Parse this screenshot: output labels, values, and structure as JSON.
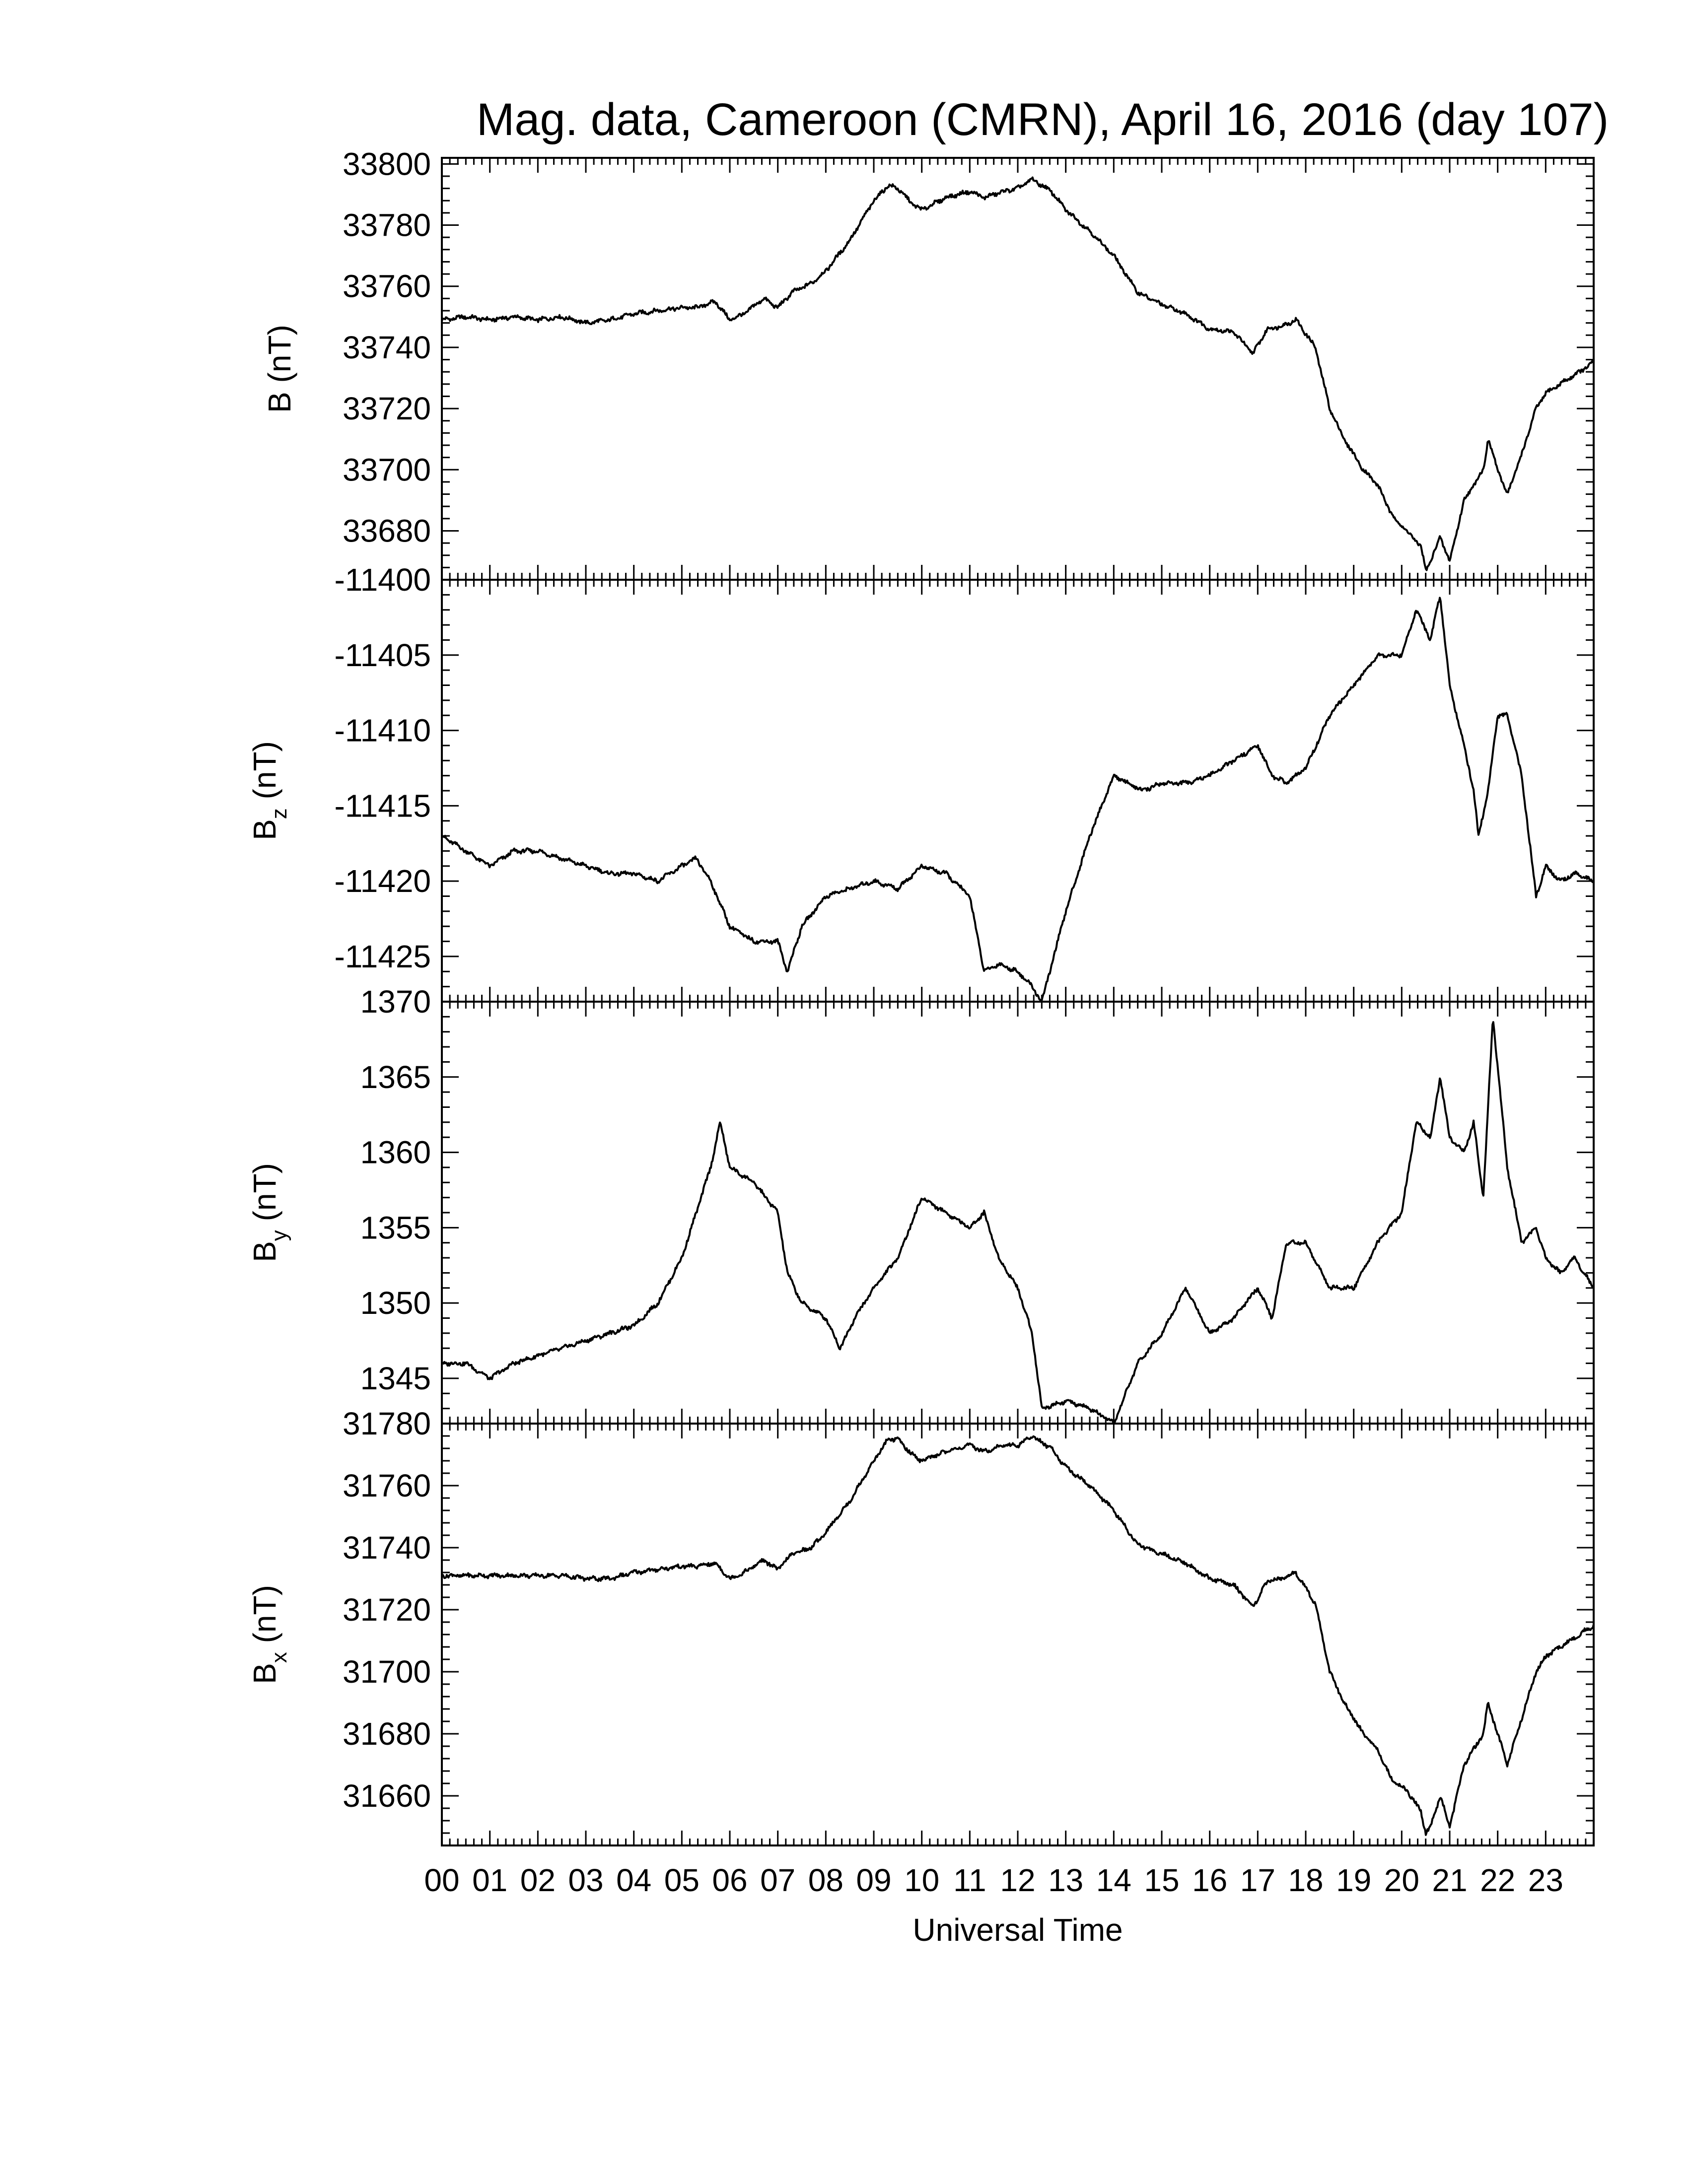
{
  "chart_data": {
    "title": "Mag. data, Cameroon (CMRN), April 16, 2016 (day 107)",
    "xlabel": "Universal Time",
    "x_tick_labels": [
      "00",
      "01",
      "02",
      "03",
      "04",
      "05",
      "06",
      "07",
      "08",
      "09",
      "10",
      "11",
      "12",
      "13",
      "14",
      "15",
      "16",
      "17",
      "18",
      "19",
      "20",
      "21",
      "22",
      "23"
    ],
    "xlim": [
      0,
      24
    ],
    "line_color": "#000000",
    "panels": [
      {
        "type": "line",
        "ylabel": "B (nT)",
        "ylabel_base": "B",
        "ylabel_sub": "",
        "ylim": [
          33664,
          33802
        ],
        "yticks": [
          33680,
          33700,
          33720,
          33740,
          33760,
          33780,
          33800
        ],
        "x": [
          0,
          0.5,
          1,
          1.5,
          2,
          2.5,
          3,
          3.5,
          4,
          4.5,
          5,
          5.3,
          5.7,
          6,
          6.3,
          6.7,
          7,
          7.3,
          7.7,
          8,
          8.5,
          9,
          9.3,
          9.5,
          9.8,
          10,
          10.5,
          11,
          11.3,
          11.7,
          12,
          12.3,
          12.7,
          13,
          13.5,
          14,
          14.5,
          15,
          15.5,
          16,
          16.5,
          16.9,
          17.2,
          17.5,
          17.8,
          18.2,
          18.5,
          18.8,
          19.2,
          19.5,
          19.8,
          20.1,
          20.4,
          20.5,
          20.6,
          20.8,
          21,
          21.3,
          21.5,
          21.7,
          21.8,
          22,
          22.2,
          22.5,
          22.8,
          23,
          23.5,
          24
        ],
        "y": [
          33749,
          33750,
          33749,
          33750,
          33749,
          33750,
          33748,
          33749,
          33751,
          33752,
          33753,
          33753,
          33755,
          33749,
          33751,
          33756,
          33753,
          33758,
          33761,
          33765,
          33775,
          33788,
          33793,
          33792,
          33787,
          33785,
          33789,
          33791,
          33789,
          33791,
          33792,
          33795,
          33791,
          33785,
          33778,
          33770,
          33758,
          33754,
          33751,
          33746,
          33745,
          33738,
          33746,
          33747,
          33749,
          33740,
          33720,
          33710,
          33700,
          33695,
          33685,
          33680,
          33675,
          33667,
          33670,
          33678,
          33670,
          33690,
          33695,
          33700,
          33710,
          33700,
          33692,
          33705,
          33720,
          33725,
          33730,
          33735
        ]
      },
      {
        "type": "line",
        "ylabel": "Bz (nT)",
        "ylabel_base": "B",
        "ylabel_sub": "z",
        "ylim": [
          -11428,
          -11400
        ],
        "yticks": [
          -11425,
          -11420,
          -11415,
          -11410,
          -11405,
          -11400
        ],
        "x": [
          0,
          0.5,
          1,
          1.5,
          2,
          2.5,
          3,
          3.5,
          4,
          4.5,
          5,
          5.3,
          5.6,
          6,
          6.5,
          7,
          7.2,
          7.5,
          8,
          8.5,
          9,
          9.5,
          10,
          10.5,
          11,
          11.3,
          11.6,
          12,
          12.3,
          12.5,
          13,
          13.5,
          14,
          14.3,
          14.6,
          15,
          15.5,
          16,
          16.5,
          17,
          17.3,
          17.6,
          18,
          18.5,
          19,
          19.5,
          20,
          20.3,
          20.6,
          20.8,
          21,
          21.3,
          21.5,
          21.6,
          21.8,
          22,
          22.2,
          22.5,
          22.8,
          23,
          23.3,
          23.6,
          24
        ],
        "y": [
          -11417,
          -11418,
          -11419,
          -11418,
          -11418,
          -11418.5,
          -11419,
          -11419.5,
          -11419.5,
          -11420,
          -11419,
          -11418.5,
          -11420,
          -11423,
          -11424,
          -11424,
          -11426,
          -11423,
          -11421,
          -11420.5,
          -11420,
          -11420.5,
          -11419,
          -11419.5,
          -11421,
          -11426,
          -11425.5,
          -11426,
          -11427,
          -11428,
          -11422,
          -11417,
          -11413,
          -11413.5,
          -11414,
          -11413.5,
          -11413.5,
          -11413,
          -11412,
          -11411,
          -11413,
          -11413.5,
          -11412.5,
          -11409,
          -11407,
          -11405,
          -11405,
          -11402,
          -11404,
          -11401,
          -11407,
          -11411,
          -11414,
          -11417,
          -11414,
          -11409,
          -11409,
          -11413,
          -11421,
          -11419,
          -11420,
          -11419.5,
          -11420
        ]
      },
      {
        "type": "line",
        "ylabel": "By (nT)",
        "ylabel_base": "B",
        "ylabel_sub": "y",
        "ylim": [
          1342,
          1370
        ],
        "yticks": [
          1345,
          1350,
          1355,
          1360,
          1365,
          1370
        ],
        "x": [
          0,
          0.5,
          1,
          1.5,
          2,
          2.5,
          3,
          3.5,
          4,
          4.5,
          5,
          5.3,
          5.6,
          5.8,
          6,
          6.5,
          7,
          7.2,
          7.5,
          8,
          8.3,
          8.6,
          9,
          9.5,
          10,
          10.5,
          11,
          11.3,
          11.6,
          12,
          12.3,
          12.5,
          13,
          13.5,
          14,
          14.5,
          15,
          15.5,
          16,
          16.5,
          17,
          17.3,
          17.6,
          18,
          18.5,
          19,
          19.5,
          20,
          20.3,
          20.6,
          20.8,
          21,
          21.3,
          21.5,
          21.7,
          21.9,
          22.2,
          22.5,
          22.8,
          23,
          23.3,
          23.6,
          24
        ],
        "y": [
          1346,
          1346,
          1345,
          1346,
          1346.5,
          1347,
          1347.5,
          1348,
          1348.5,
          1350,
          1353,
          1356,
          1359,
          1362,
          1359,
          1358,
          1356,
          1352,
          1350,
          1349,
          1347,
          1349,
          1351,
          1353,
          1357,
          1356,
          1355,
          1356,
          1353,
          1351,
          1348,
          1343,
          1343.5,
          1343,
          1342,
          1346,
          1348,
          1351,
          1348,
          1349,
          1351,
          1349,
          1354,
          1354,
          1351,
          1351,
          1354,
          1356,
          1362,
          1361,
          1365,
          1361,
          1360,
          1362,
          1357,
          1369,
          1359,
          1354,
          1355,
          1353,
          1352,
          1353,
          1351
        ]
      },
      {
        "type": "line",
        "ylabel": "Bx (nT)",
        "ylabel_base": "B",
        "ylabel_sub": "x",
        "ylim": [
          31644,
          31780
        ],
        "yticks": [
          31660,
          31680,
          31700,
          31720,
          31740,
          31760,
          31780
        ],
        "x": [
          0,
          0.5,
          1,
          1.5,
          2,
          2.5,
          3,
          3.5,
          4,
          4.5,
          5,
          5.3,
          5.7,
          6,
          6.3,
          6.7,
          7,
          7.3,
          7.7,
          8,
          8.5,
          9,
          9.3,
          9.5,
          9.8,
          10,
          10.5,
          11,
          11.3,
          11.7,
          12,
          12.3,
          12.7,
          13,
          13.5,
          14,
          14.5,
          15,
          15.5,
          16,
          16.5,
          16.9,
          17.2,
          17.5,
          17.8,
          18.2,
          18.5,
          18.8,
          19.2,
          19.5,
          19.8,
          20.1,
          20.4,
          20.5,
          20.6,
          20.8,
          21,
          21.3,
          21.5,
          21.7,
          21.8,
          22,
          22.2,
          22.5,
          22.8,
          23,
          23.5,
          24
        ],
        "y": [
          31731,
          31731,
          31731,
          31731,
          31731,
          31731,
          31730,
          31730,
          31732,
          31733,
          31734,
          31734,
          31735,
          31730,
          31732,
          31736,
          31733,
          31738,
          31740,
          31745,
          31755,
          31768,
          31775,
          31775,
          31770,
          31768,
          31771,
          31773,
          31771,
          31773,
          31773,
          31776,
          31772,
          31766,
          31760,
          31752,
          31741,
          31738,
          31735,
          31730,
          31728,
          31721,
          31729,
          31730,
          31732,
          31722,
          31700,
          31690,
          31680,
          31675,
          31665,
          31662,
          31655,
          31648,
          31650,
          31660,
          31650,
          31670,
          31675,
          31680,
          31690,
          31680,
          31670,
          31685,
          31700,
          31705,
          31710,
          31715
        ]
      }
    ]
  }
}
